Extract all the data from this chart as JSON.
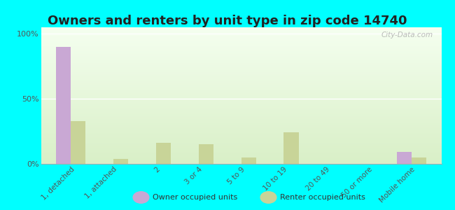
{
  "title": "Owners and renters by unit type in zip code 14740",
  "categories": [
    "1, detached",
    "1, attached",
    "2",
    "3 or 4",
    "5 to 9",
    "10 to 19",
    "20 to 49",
    "50 or more",
    "Mobile home"
  ],
  "owner_values": [
    90,
    0,
    0,
    0,
    0,
    0,
    0,
    0,
    9
  ],
  "renter_values": [
    33,
    4,
    16,
    15,
    5,
    24,
    0,
    0,
    5
  ],
  "owner_color": "#c9a8d4",
  "renter_color": "#c8d498",
  "background_color": "#00ffff",
  "ylabel_ticks": [
    "0%",
    "50%",
    "100%"
  ],
  "ytick_vals": [
    0,
    50,
    100
  ],
  "ylim": [
    0,
    105
  ],
  "bar_width": 0.35,
  "legend_owner": "Owner occupied units",
  "legend_renter": "Renter occupied units",
  "watermark": "City-Data.com",
  "title_fontsize": 13,
  "title_color": "#222222"
}
